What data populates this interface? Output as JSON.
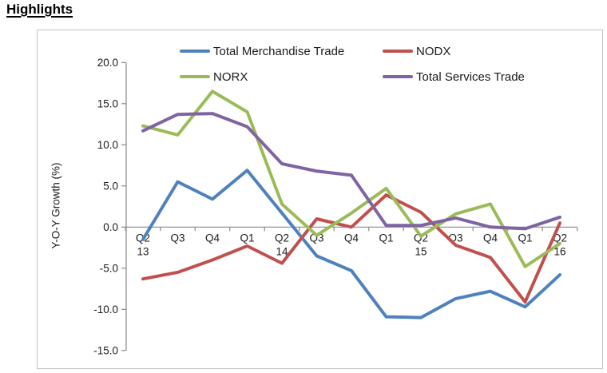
{
  "page": {
    "title": "Highlights"
  },
  "chart_data": {
    "type": "line",
    "title": "",
    "ylabel": "Y-O-Y Growth (%)",
    "ylim": [
      -15,
      20
    ],
    "ytick_step": 5,
    "ytick_labels": [
      "20.0",
      "15.0",
      "10.0",
      "5.0",
      "0.0",
      "-5.0",
      "-10.0",
      "-15.0"
    ],
    "grid": "off",
    "legend_position": "top-two-column",
    "axis_color": "#8a8a8a",
    "text_color": "#1a1a1a",
    "border_color": "#c3c3c3",
    "xtick_labels": [
      {
        "quarter": "Q2",
        "year": "13"
      },
      {
        "quarter": "Q3"
      },
      {
        "quarter": "Q4"
      },
      {
        "quarter": "Q1"
      },
      {
        "quarter": "Q2",
        "year": "14"
      },
      {
        "quarter": "Q3"
      },
      {
        "quarter": "Q4"
      },
      {
        "quarter": "Q1"
      },
      {
        "quarter": "Q2",
        "year": "15"
      },
      {
        "quarter": "Q3"
      },
      {
        "quarter": "Q4"
      },
      {
        "quarter": "Q1"
      },
      {
        "quarter": "Q2",
        "year": "16"
      }
    ],
    "series": [
      {
        "name": "Total Merchandise Trade",
        "color": "#4F81BD",
        "values": [
          -1.5,
          5.5,
          3.4,
          6.9,
          1.7,
          -3.5,
          -5.3,
          -10.9,
          -11.0,
          -8.7,
          -7.8,
          -9.7,
          -5.8
        ]
      },
      {
        "name": "NODX",
        "color": "#C0504D",
        "values": [
          -6.3,
          -5.5,
          -4.0,
          -2.3,
          -4.4,
          1.0,
          0.0,
          3.9,
          1.8,
          -2.2,
          -3.7,
          -9.1,
          0.5
        ]
      },
      {
        "name": "NORX",
        "color": "#9BBB59",
        "values": [
          12.3,
          11.2,
          16.5,
          14.0,
          2.8,
          -1.0,
          1.7,
          4.7,
          -1.1,
          1.6,
          2.8,
          -4.8,
          -2.0
        ]
      },
      {
        "name": "Total Services Trade",
        "color": "#8064A2",
        "values": [
          11.7,
          13.7,
          13.8,
          12.2,
          7.7,
          6.8,
          6.3,
          0.2,
          0.2,
          1.1,
          0.0,
          -0.2,
          1.2
        ]
      }
    ]
  }
}
